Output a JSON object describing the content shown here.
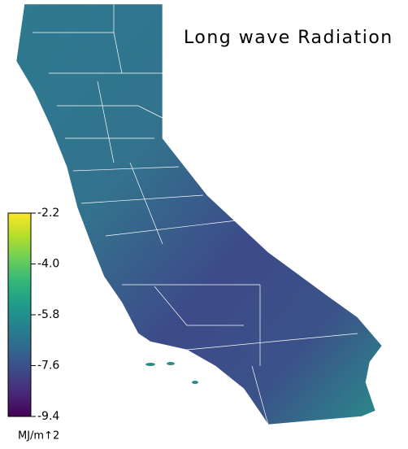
{
  "title": "Long wave Radiation",
  "colorbar": {
    "lim": [
      -9.4,
      -2.2
    ],
    "ticks": [
      -2.2,
      {
        "value": -4,
        "label": "-4.0"
      },
      -5.8,
      -7.6,
      -9.4
    ],
    "unit": "MJ/m↑2",
    "colormap": "viridis"
  }
}
